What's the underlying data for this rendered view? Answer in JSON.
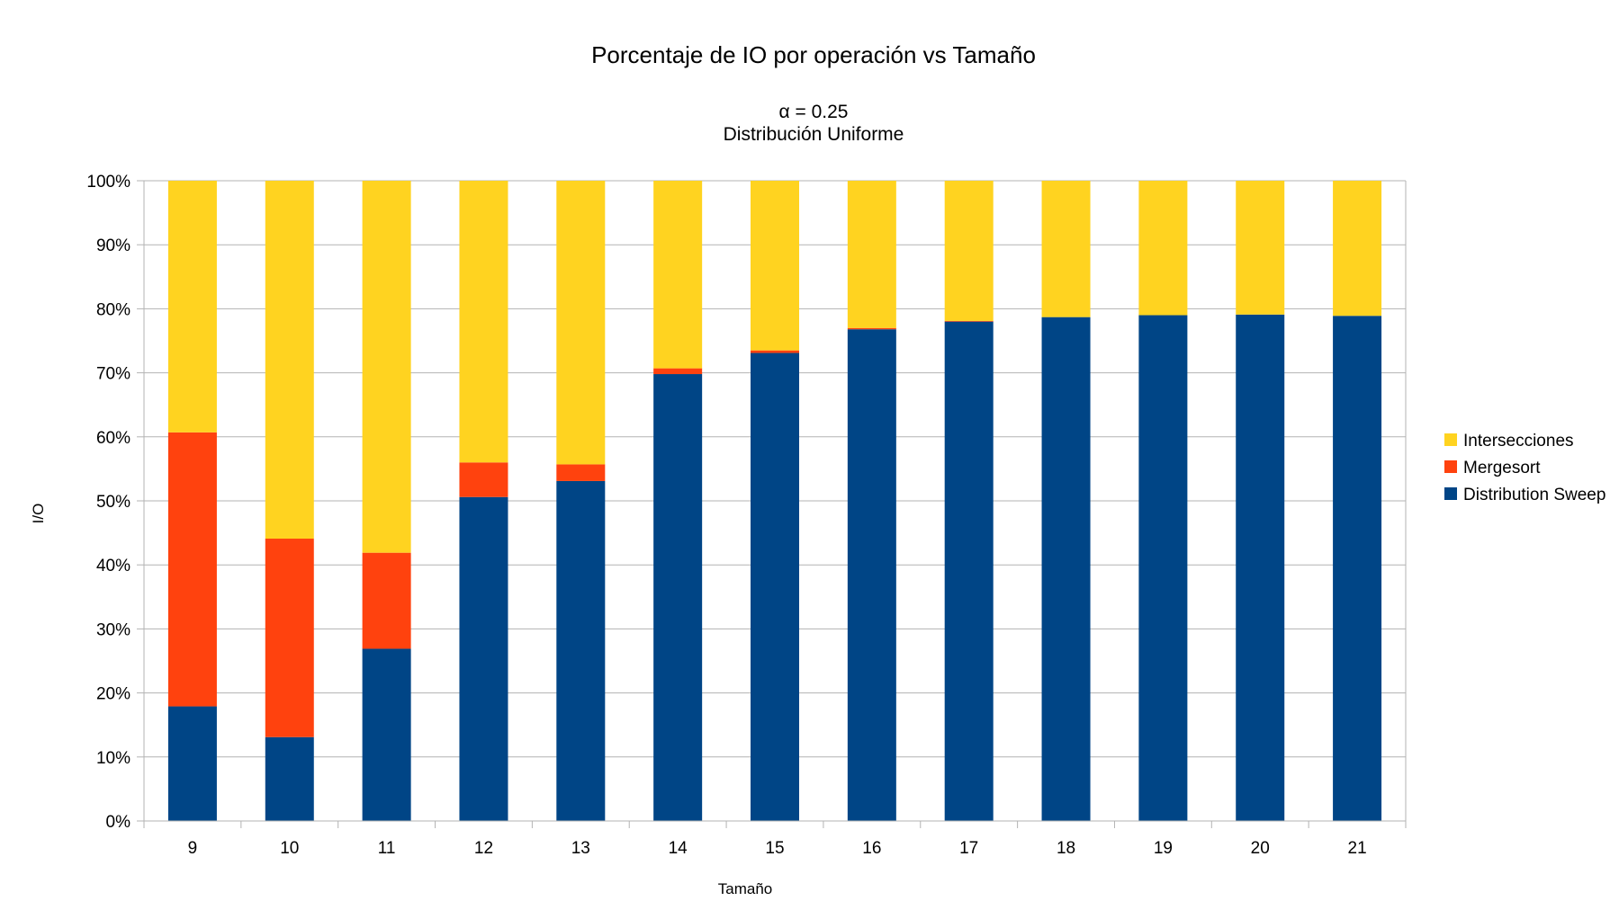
{
  "chart_data": {
    "type": "bar",
    "stacked": true,
    "percent_stacked": true,
    "title": "Porcentaje de IO por operación vs Tamaño",
    "subtitle_lines": [
      "α = 0.25",
      "Distribución Uniforme"
    ],
    "xlabel": "Tamaño",
    "ylabel": "I/O",
    "categories": [
      "9",
      "10",
      "11",
      "12",
      "13",
      "14",
      "15",
      "16",
      "17",
      "18",
      "19",
      "20",
      "21"
    ],
    "y_ticks": [
      "0%",
      "10%",
      "20%",
      "30%",
      "40%",
      "50%",
      "60%",
      "70%",
      "80%",
      "90%",
      "100%"
    ],
    "ylim": [
      0,
      100
    ],
    "grid": true,
    "legend_position": "right",
    "series": [
      {
        "name": "Distribution Sweep",
        "color": "#004586",
        "values": [
          17.9,
          13.1,
          26.9,
          50.6,
          53.1,
          69.8,
          73.1,
          76.8,
          78.0,
          78.7,
          79.0,
          79.1,
          78.9
        ]
      },
      {
        "name": "Mergesort",
        "color": "#ff420e",
        "values": [
          42.8,
          31.0,
          15.0,
          5.4,
          2.6,
          0.9,
          0.4,
          0.2,
          0.1,
          0.0,
          0.0,
          0.0,
          0.0
        ]
      },
      {
        "name": "Intersecciones",
        "color": "#ffd320",
        "values": [
          39.3,
          55.9,
          58.1,
          44.0,
          44.3,
          29.3,
          26.5,
          23.0,
          21.9,
          21.3,
          21.0,
          20.9,
          21.1
        ]
      }
    ],
    "legend_order": [
      "Intersecciones",
      "Mergesort",
      "Distribution Sweep"
    ]
  }
}
